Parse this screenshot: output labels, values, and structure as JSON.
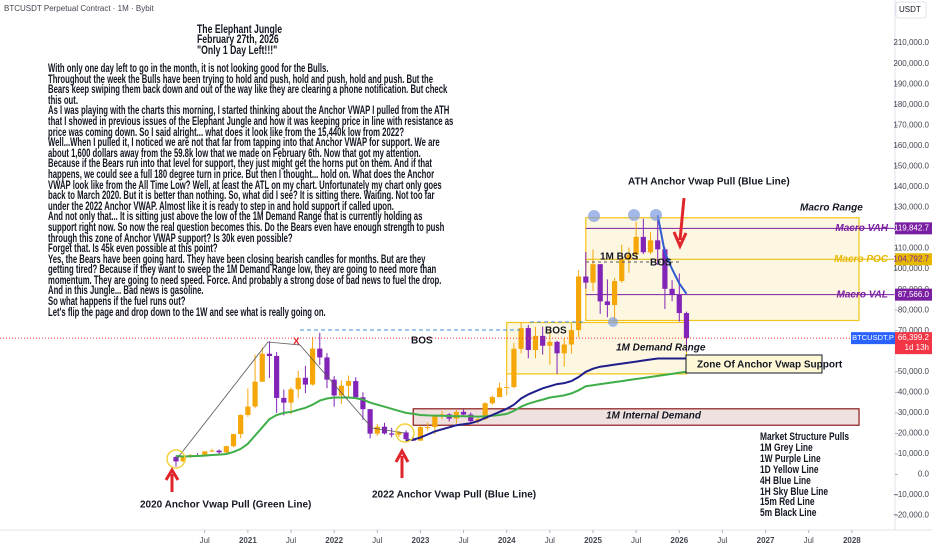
{
  "header": {
    "symbol": "BTCUSDT Perpetual Contract · 1M · Bybit",
    "currency": "USDT"
  },
  "note": {
    "title": [
      "The Elephant Jungle",
      "February 27th, 2026",
      "\"Only 1 Day Left!!!\""
    ],
    "lines": [
      "With only one day left to go in the month, it is not looking good for the Bulls.",
      "Throughout the week the Bulls have been trying to hold and push, hold and push, hold and push. But the",
      "Bears keep swiping them back down and out of the way like they are clearing a phone notification. But check",
      "this out.",
      "As I was playing with the charts this morning, I started thinking about the Anchor VWAP I pulled from the ATH",
      "that I showed in previous issues of the Elephant Jungle and how it was keeping price in line with resistance as",
      "price was coming down. So I said alright... what does it look like from the 15,440k low from 2022?",
      "Well...When I pulled it, I noticed we are not that far from tapping into that Anchor VWAP for support. We are",
      "about 1,600 dollars away from the 59.8k low that we made on February 6th. Now that got my attention.",
      "Because if the Bears run into that level for support, they just might get the horns put on them. And if that",
      "happens, we could see a full 180 degree turn in price. But then I thought... hold on. What does the Anchor",
      "VWAP look like from the All Time Low? Well, at least the ATL on my chart. Unfortunately my chart only goes",
      "back to March 2020. But it is better than nothing. So, what did I see? It is sitting there. Waiting. Not too far",
      "under the 2022 Anchor VWAP. Almost like it is ready to step in and hold support if called upon.",
      "And not only that... It is sitting just above the low of the 1M Demand Range that is currently holding as",
      "support right now. So now the real question becomes this. Do the Bears even have enough strength to push",
      "through this zone of Anchor VWAP support? Is 30k even possible?",
      "Forget that. Is 45k even possible at this point?",
      "Yes, the Bears have been going hard. They have been closing bearish candles for months. But are they",
      "getting tired? Because if they want to sweep the 1M Demand Range low, they are going to need more than",
      "momentum. They are going to need speed. Force. And probably a strong dose of bad news to fuel the drop.",
      "And in this Jungle... Bad news is gasoline.",
      "So what happens if the fuel runs out?",
      "Let's flip the page and drop down to the 1W and see what is really going on."
    ]
  },
  "legend_box": {
    "title": "Market Structure Pulls",
    "items": [
      "1M Grey Line",
      "1W Purple Line",
      "1D Yellow Line",
      "4H Blue Line",
      "1H Sky Blue Line",
      "15m Red Line",
      "5m Black Line"
    ]
  },
  "annotations": [
    "ATH Anchor Vwap Pull (Blue Line)",
    "1M BOS",
    "BOS",
    "BOS",
    "BOS",
    "X",
    "Zone Of Anchor Vwap Support",
    "2020 Anchor Vwap Pull (Green Line)",
    "2022 Anchor Vwap Pull (Blue Line)"
  ],
  "chart_data": {
    "type": "candlestick",
    "x": [
      "2020-03",
      "2020-04",
      "2020-05",
      "2020-06",
      "2020-07",
      "2020-08",
      "2020-09",
      "2020-10",
      "2020-11",
      "2020-12",
      "2021-01",
      "2021-02",
      "2021-03",
      "2021-04",
      "2021-05",
      "2021-06",
      "2021-07",
      "2021-08",
      "2021-09",
      "2021-10",
      "2021-11",
      "2021-12",
      "2022-01",
      "2022-02",
      "2022-03",
      "2022-04",
      "2022-05",
      "2022-06",
      "2022-07",
      "2022-08",
      "2022-09",
      "2022-10",
      "2022-11",
      "2022-12",
      "2023-01",
      "2023-02",
      "2023-03",
      "2023-04",
      "2023-05",
      "2023-06",
      "2023-07",
      "2023-08",
      "2023-09",
      "2023-10",
      "2023-11",
      "2023-12",
      "2024-01",
      "2024-02",
      "2024-03",
      "2024-04",
      "2024-05",
      "2024-06",
      "2024-07",
      "2024-08",
      "2024-09",
      "2024-10",
      "2024-11",
      "2024-12",
      "2025-01",
      "2025-02",
      "2025-03",
      "2025-04",
      "2025-05",
      "2025-06",
      "2025-07",
      "2025-08",
      "2025-09",
      "2025-10",
      "2025-11",
      "2025-12",
      "2026-01",
      "2026-02"
    ],
    "open": [
      8500,
      6400,
      8600,
      9450,
      9100,
      11300,
      11650,
      10800,
      13800,
      19700,
      29000,
      33100,
      45200,
      58800,
      57700,
      37300,
      35000,
      41500,
      47100,
      43800,
      61300,
      57000,
      46200,
      38500,
      43200,
      45500,
      37600,
      31800,
      19900,
      23300,
      20000,
      19400,
      20500,
      17200,
      16500,
      23100,
      23100,
      28500,
      29300,
      27200,
      30500,
      29200,
      26000,
      27000,
      34700,
      37700,
      42300,
      42600,
      61200,
      71300,
      60600,
      67500,
      62700,
      64600,
      59000,
      63300,
      70300,
      96400,
      93400,
      102400,
      84300,
      82500,
      94200,
      104600,
      107100,
      115700,
      108200,
      114000,
      109600,
      90400,
      87600,
      78600
    ],
    "high": [
      9200,
      9400,
      10000,
      10400,
      11400,
      12500,
      12100,
      14100,
      19900,
      29300,
      41900,
      58400,
      61800,
      64900,
      59600,
      41300,
      42400,
      50500,
      52900,
      67000,
      69000,
      59100,
      47900,
      45800,
      48200,
      47400,
      40000,
      31900,
      24700,
      25200,
      22800,
      21100,
      21500,
      18400,
      23900,
      25300,
      29200,
      31000,
      29900,
      31400,
      31800,
      30200,
      27500,
      35200,
      38400,
      44700,
      49000,
      64000,
      73800,
      72800,
      71900,
      72000,
      70000,
      65100,
      66500,
      73600,
      99600,
      108300,
      109600,
      102500,
      95000,
      95800,
      111900,
      110500,
      123200,
      124500,
      117900,
      126200,
      110600,
      94600,
      97900,
      79300
    ],
    "low": [
      3800,
      6200,
      8100,
      8900,
      8900,
      11000,
      9900,
      10400,
      13200,
      17600,
      28100,
      32300,
      45000,
      47000,
      30000,
      28800,
      29300,
      37300,
      39600,
      43300,
      53300,
      42000,
      33000,
      34300,
      37200,
      37700,
      26700,
      17600,
      18800,
      19500,
      18100,
      18200,
      15500,
      16300,
      16500,
      21400,
      19600,
      26900,
      25800,
      24800,
      28900,
      25200,
      24900,
      26500,
      34000,
      37600,
      38500,
      41900,
      59000,
      56600,
      56600,
      58400,
      53500,
      49000,
      52500,
      58900,
      66800,
      90500,
      89200,
      78200,
      76600,
      74400,
      93300,
      98200,
      105100,
      107300,
      107300,
      102000,
      80600,
      84400,
      74500,
      59800
    ],
    "close": [
      6400,
      8600,
      9450,
      9100,
      11300,
      11650,
      10800,
      13800,
      19700,
      29000,
      33100,
      45200,
      58800,
      57700,
      37300,
      35000,
      41500,
      47100,
      43800,
      61300,
      57000,
      46200,
      38500,
      43200,
      45500,
      37600,
      31800,
      19900,
      23300,
      20000,
      19400,
      20500,
      17200,
      16500,
      23100,
      23100,
      28500,
      29300,
      27200,
      30500,
      29200,
      26000,
      27000,
      34700,
      37700,
      42300,
      42600,
      61200,
      71300,
      60600,
      67500,
      62700,
      64600,
      59000,
      63300,
      70300,
      96400,
      93400,
      102400,
      84300,
      82500,
      94200,
      104600,
      107100,
      115700,
      108200,
      114000,
      109600,
      90400,
      87600,
      78600,
      66399.2
    ],
    "up_color": "#f5a70a",
    "down_color": "#8224b8",
    "lines": [
      {
        "color": "#3fae49",
        "values": [
          9000,
          8800,
          8900,
          9000,
          9200,
          9500,
          9700,
          10000,
          11000,
          12500,
          15000,
          19000,
          23000,
          27000,
          29000,
          30000,
          30500,
          31500,
          32500,
          34000,
          36000,
          37000,
          37500,
          37500,
          37500,
          37200,
          36500,
          35000,
          34000,
          33000,
          32000,
          31000,
          30000,
          29500,
          29000,
          28800,
          28700,
          28600,
          28500,
          28400,
          28400,
          28300,
          28200,
          28300,
          28600,
          29000,
          29500,
          31000,
          33000,
          34500,
          35500,
          36500,
          37500,
          38000,
          38500,
          39500,
          41000,
          43000,
          43500,
          44000,
          44500,
          45000,
          45500,
          46000,
          46500,
          47000,
          47500,
          48000,
          48500,
          49000,
          49500,
          50000
        ]
      },
      {
        "color": "#1f1f8c",
        "values": [
          null,
          null,
          null,
          null,
          null,
          null,
          null,
          null,
          null,
          null,
          null,
          null,
          null,
          null,
          null,
          null,
          null,
          null,
          null,
          null,
          null,
          null,
          null,
          null,
          null,
          null,
          null,
          null,
          null,
          null,
          null,
          null,
          16500,
          17000,
          18000,
          19500,
          21000,
          22000,
          23000,
          24000,
          24500,
          25000,
          26000,
          27500,
          29000,
          30500,
          32000,
          34000,
          37000,
          39000,
          40500,
          42000,
          43000,
          44000,
          44500,
          45500,
          47500,
          50000,
          51500,
          52500,
          53000,
          53500,
          54000,
          54500,
          55000,
          55500,
          56000,
          56500,
          56500,
          56500,
          56500,
          56500
        ]
      },
      {
        "color": "#2f5bd3",
        "values": [
          null,
          null,
          null,
          null,
          null,
          null,
          null,
          null,
          null,
          null,
          null,
          null,
          null,
          null,
          null,
          null,
          null,
          null,
          null,
          null,
          null,
          null,
          null,
          null,
          null,
          null,
          null,
          null,
          null,
          null,
          null,
          null,
          null,
          null,
          null,
          null,
          null,
          null,
          null,
          null,
          null,
          null,
          null,
          null,
          null,
          null,
          null,
          null,
          null,
          null,
          null,
          null,
          null,
          null,
          null,
          null,
          null,
          null,
          null,
          null,
          null,
          null,
          null,
          null,
          null,
          null,
          null,
          126200,
          108000,
          100000,
          93000,
          88000
        ]
      }
    ],
    "zones": [
      {
        "label": "Macro Range",
        "from": "2024-12",
        "to": "2028-02",
        "low": 75000,
        "high": 125000,
        "color": "#f2c318"
      },
      {
        "label": "1M Demand Range",
        "from": "2024-01",
        "to": "2026-02",
        "low": 49000,
        "high": 74000,
        "color": "#f2c318"
      },
      {
        "label": "1M Internal Demand",
        "from": "2022-12",
        "to": "2028-02",
        "low": 24000,
        "high": 32000,
        "color": "#8b1a1a"
      }
    ],
    "price_lines": [
      {
        "name": "Macro VAH",
        "value": 119842.7,
        "label": "119,842.7",
        "color": "#7b1fa2",
        "from": "2024-12"
      },
      {
        "name": "Macro POC",
        "value": 104792.7,
        "label": "104,792.7",
        "color": "#e6b800",
        "from": "2024-12"
      },
      {
        "name": "Macro VAL",
        "value": 87566.0,
        "label": "87,566.0",
        "color": "#7b1fa2",
        "from": "2024-12"
      }
    ],
    "last_price": {
      "symbol": "BTCUSDT.P",
      "value": 66399.2,
      "label": "66,399.2",
      "countdown": "1d 13h"
    },
    "ylim": [
      -27000,
      231000
    ],
    "yticks": [
      {
        "value": -20000,
        "label": "−20,000.0"
      },
      {
        "value": -10000,
        "label": "−10,000.0"
      },
      {
        "value": 0,
        "label": "0.0"
      },
      {
        "value": 10000,
        "label": "10,000.0"
      },
      {
        "value": 20000,
        "label": "20,000.0"
      },
      {
        "value": 30000,
        "label": "30,000.0"
      },
      {
        "value": 40000,
        "label": "40,000.0"
      },
      {
        "value": 50000,
        "label": "50,000.0"
      },
      {
        "value": 60000,
        "label": "60,000.0"
      },
      {
        "value": 70000,
        "label": "70,000.0"
      },
      {
        "value": 80000,
        "label": "80,000.0"
      },
      {
        "value": 90000,
        "label": "90,000.0"
      },
      {
        "value": 100000,
        "label": "100,000.0"
      },
      {
        "value": 110000,
        "label": "110,000.0"
      },
      {
        "value": 120000,
        "label": "120,000.0"
      },
      {
        "value": 130000,
        "label": "130,000.0"
      },
      {
        "value": 140000,
        "label": "140,000.0"
      },
      {
        "value": 150000,
        "label": "150,000.0"
      },
      {
        "value": 160000,
        "label": "160,000.0"
      },
      {
        "value": 170000,
        "label": "170,000.0"
      },
      {
        "value": 180000,
        "label": "180,000.0"
      },
      {
        "value": 190000,
        "label": "190,000.0"
      },
      {
        "value": 200000,
        "label": "200,000.0"
      },
      {
        "value": 210000,
        "label": "210,000.0"
      }
    ],
    "xticks": [
      {
        "value": "2020-07",
        "label": "Jul"
      },
      {
        "value": "2021-01",
        "label": "2021"
      },
      {
        "value": "2021-07",
        "label": "Jul"
      },
      {
        "value": "2022-01",
        "label": "2022"
      },
      {
        "value": "2022-07",
        "label": "Jul"
      },
      {
        "value": "2023-01",
        "label": "2023"
      },
      {
        "value": "2023-07",
        "label": "Jul"
      },
      {
        "value": "2024-01",
        "label": "2024"
      },
      {
        "value": "2024-07",
        "label": "Jul"
      },
      {
        "value": "2025-01",
        "label": "2025"
      },
      {
        "value": "2025-07",
        "label": "Jul"
      },
      {
        "value": "2026-01",
        "label": "2026"
      },
      {
        "value": "2026-07",
        "label": "Jul"
      },
      {
        "value": "2027-01",
        "label": "2027"
      },
      {
        "value": "2027-07",
        "label": "Jul"
      },
      {
        "value": "2028-01",
        "label": "2028"
      }
    ]
  }
}
